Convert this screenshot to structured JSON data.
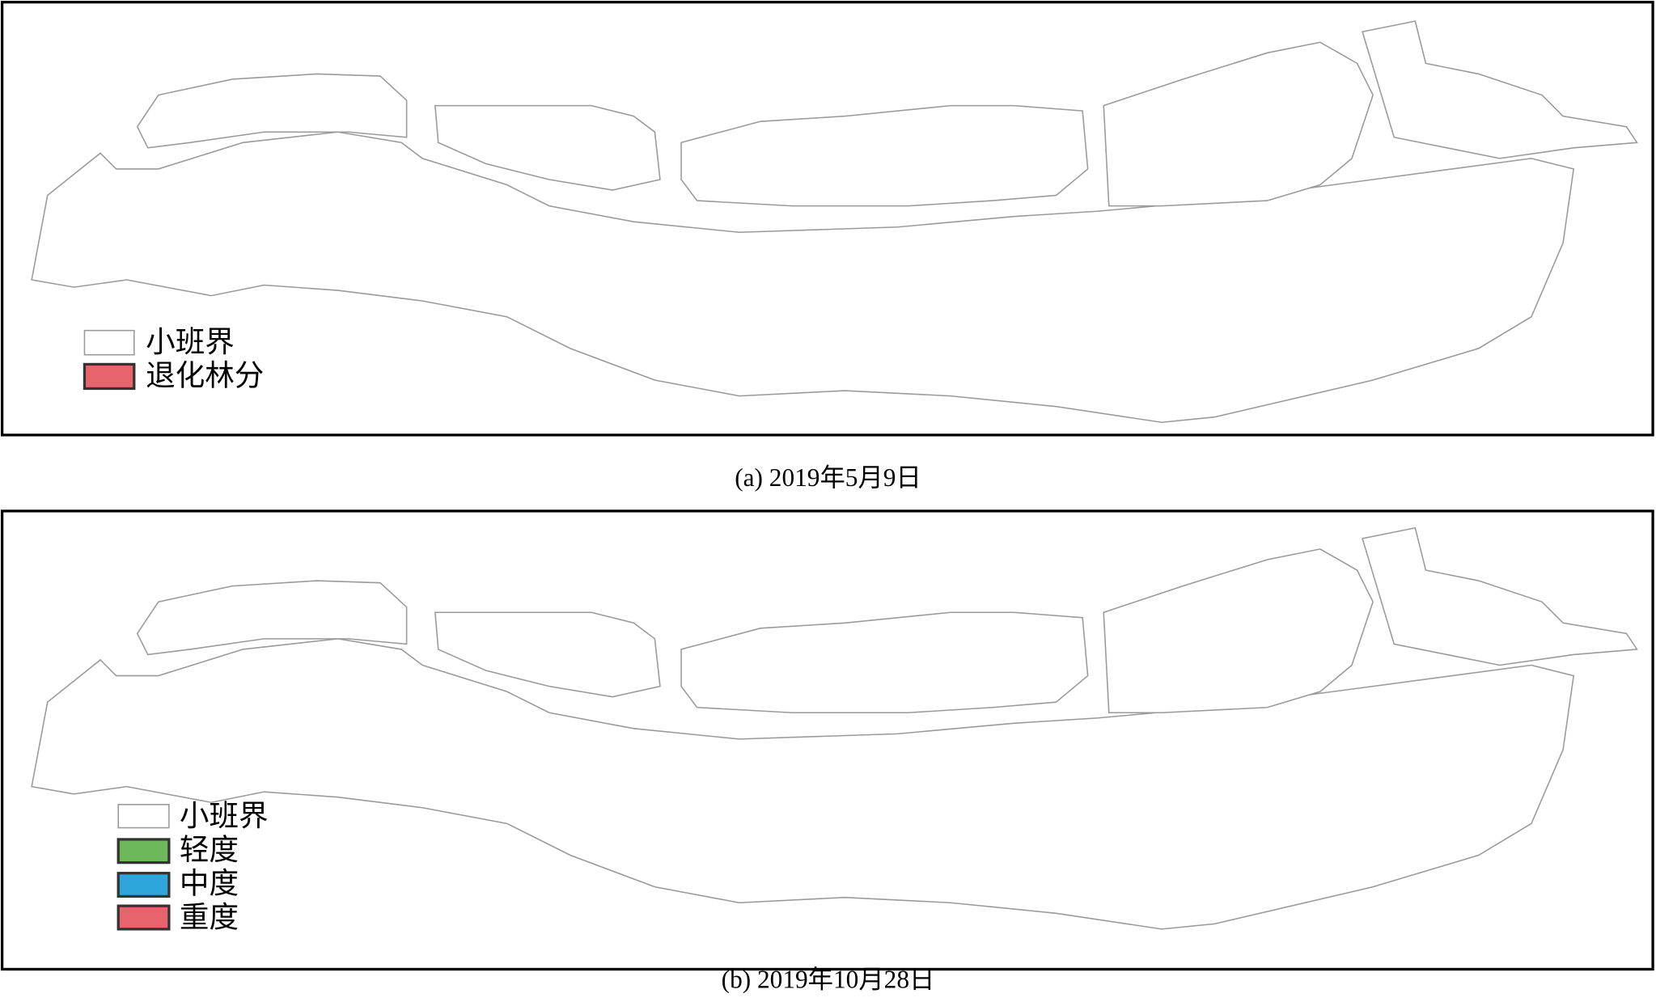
{
  "panels": [
    {
      "legend": [
        "小班界",
        "退化林分"
      ],
      "caption": "(a) 2019年5月9日"
    },
    {
      "legend": [
        "小班界",
        "轻度",
        "中度",
        "重度"
      ],
      "caption": "(b) 2019年10月28日"
    }
  ]
}
